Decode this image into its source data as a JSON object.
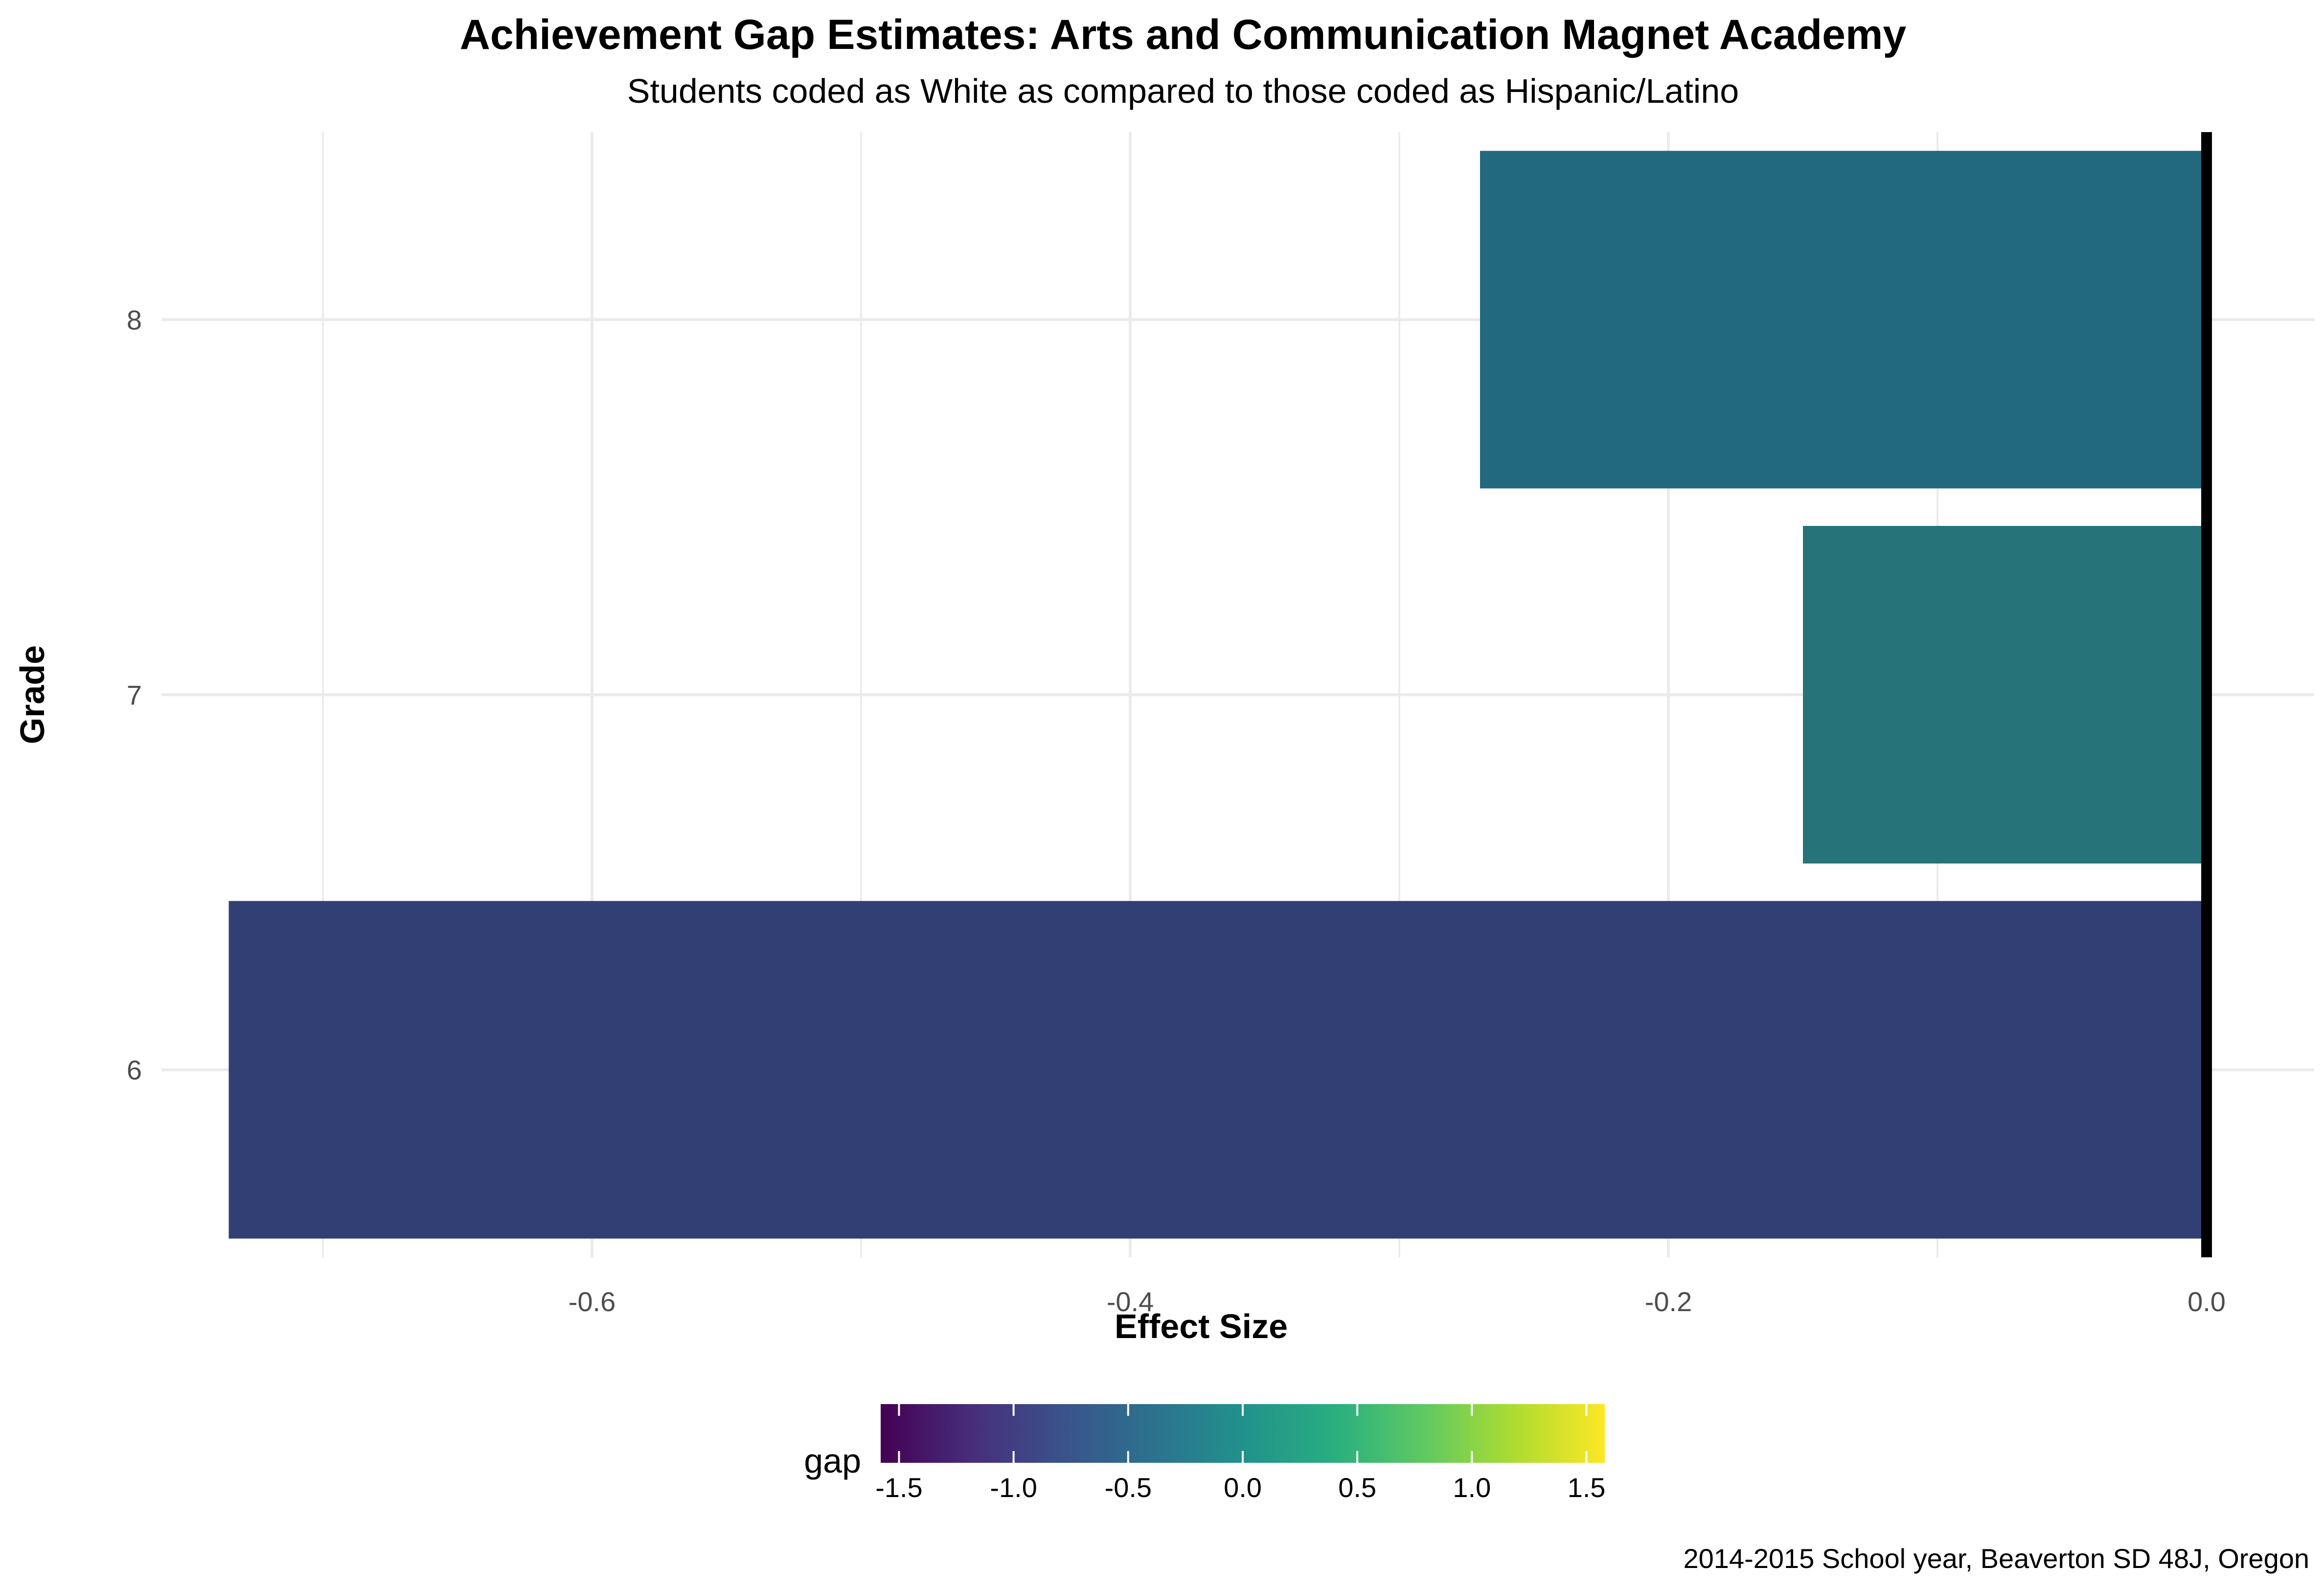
{
  "chart_data": {
    "type": "bar",
    "orientation": "horizontal",
    "title": "Achievement Gap Estimates: Arts and Communication Magnet Academy",
    "subtitle": "Students coded as White as compared to those coded as Hispanic/Latino",
    "xlabel": "Effect Size",
    "ylabel": "Grade",
    "caption": "2014-2015 School year, Beaverton SD 48J, Oregon",
    "categories": [
      "6",
      "7",
      "8"
    ],
    "values": [
      -0.735,
      -0.15,
      -0.27
    ],
    "bar_colors": [
      "#313f74",
      "#26737a",
      "#22697e"
    ],
    "xlim": [
      -0.76,
      0.04
    ],
    "x_ticks": [
      -0.6,
      -0.4,
      -0.2,
      0.0
    ],
    "x_tick_labels": [
      "-0.6",
      "-0.4",
      "-0.2",
      "0.0"
    ],
    "grid": true,
    "reference_line": 0,
    "reference_line_color": "#000000",
    "legend": {
      "title": "gap",
      "placement": "bottom",
      "type": "colorbar",
      "palette": "viridis",
      "range": [
        -1.58,
        1.58
      ],
      "ticks": [
        -1.5,
        -1.0,
        -0.5,
        0.0,
        0.5,
        1.0,
        1.5
      ],
      "tick_labels": [
        "-1.5",
        "-1.0",
        "-0.5",
        "0.0",
        "0.5",
        "1.0",
        "1.5"
      ]
    }
  }
}
